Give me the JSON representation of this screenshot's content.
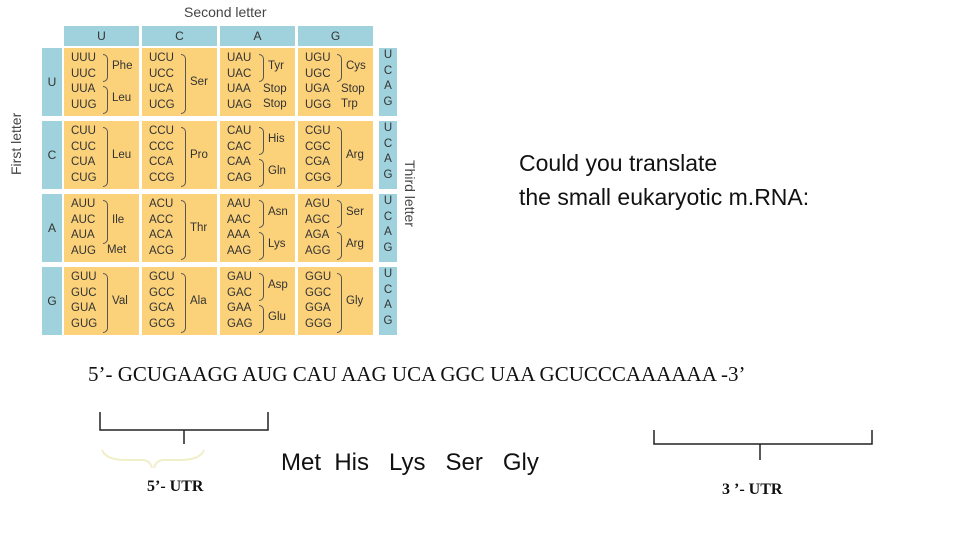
{
  "codon_table": {
    "second_letter_label": "Second letter",
    "first_letter_label": "First letter",
    "third_letter_label": "Third letter",
    "column_headers": [
      "U",
      "C",
      "A",
      "G"
    ],
    "row_headers": [
      "U",
      "C",
      "A",
      "G"
    ],
    "third_letter_bases": [
      "U",
      "C",
      "A",
      "G"
    ],
    "cells": [
      [
        {
          "codons": "UUU\nUUC\nUUA\nUUG",
          "aa": [
            "Phe",
            "Leu"
          ]
        },
        {
          "codons": "UCU\nUCC\nUCA\nUCG",
          "aa": [
            "Ser"
          ]
        },
        {
          "codons": "UAU\nUAC\nUAA\nUAG",
          "aa": [
            "Tyr",
            "Stop",
            "Stop"
          ]
        },
        {
          "codons": "UGU\nUGC\nUGA\nUGG",
          "aa": [
            "Cys",
            "Stop",
            "Trp"
          ]
        }
      ],
      [
        {
          "codons": "CUU\nCUC\nCUA\nCUG",
          "aa": [
            "Leu"
          ]
        },
        {
          "codons": "CCU\nCCC\nCCA\nCCG",
          "aa": [
            "Pro"
          ]
        },
        {
          "codons": "CAU\nCAC\nCAA\nCAG",
          "aa": [
            "His",
            "Gln"
          ]
        },
        {
          "codons": "CGU\nCGC\nCGA\nCGG",
          "aa": [
            "Arg"
          ]
        }
      ],
      [
        {
          "codons": "AUU\nAUC\nAUA\nAUG",
          "aa": [
            "Ile",
            "Met"
          ]
        },
        {
          "codons": "ACU\nACC\nACA\nACG",
          "aa": [
            "Thr"
          ]
        },
        {
          "codons": "AAU\nAAC\nAAA\nAAG",
          "aa": [
            "Asn",
            "Lys"
          ]
        },
        {
          "codons": "AGU\nAGC\nAGA\nAGG",
          "aa": [
            "Ser",
            "Arg"
          ]
        }
      ],
      [
        {
          "codons": "GUU\nGUC\nGUA\nGUG",
          "aa": [
            "Val"
          ]
        },
        {
          "codons": "GCU\nGCC\nGCA\nGCG",
          "aa": [
            "Ala"
          ]
        },
        {
          "codons": "GAU\nGAC\nGAA\nGAG",
          "aa": [
            "Asp",
            "Glu"
          ]
        },
        {
          "codons": "GGU\nGGC\nGGA\nGGG",
          "aa": [
            "Gly"
          ]
        }
      ]
    ],
    "colors": {
      "header": "#9fd2dc",
      "cell": "#fbd17a"
    }
  },
  "question": {
    "line1": "Could you translate",
    "line2": "the small eukaryotic m.RNA:"
  },
  "mrna": {
    "prefix": "5’- GCUGAAGG ",
    "coding": "AUG CAU AAG UCA GGC UAA",
    "suffix": " GCUCCCAAAAAA -3’"
  },
  "protein": "Met  His   Lys   Ser   Gly",
  "labels": {
    "utr5": "5’- UTR",
    "utr3": "3 ’- UTR"
  }
}
